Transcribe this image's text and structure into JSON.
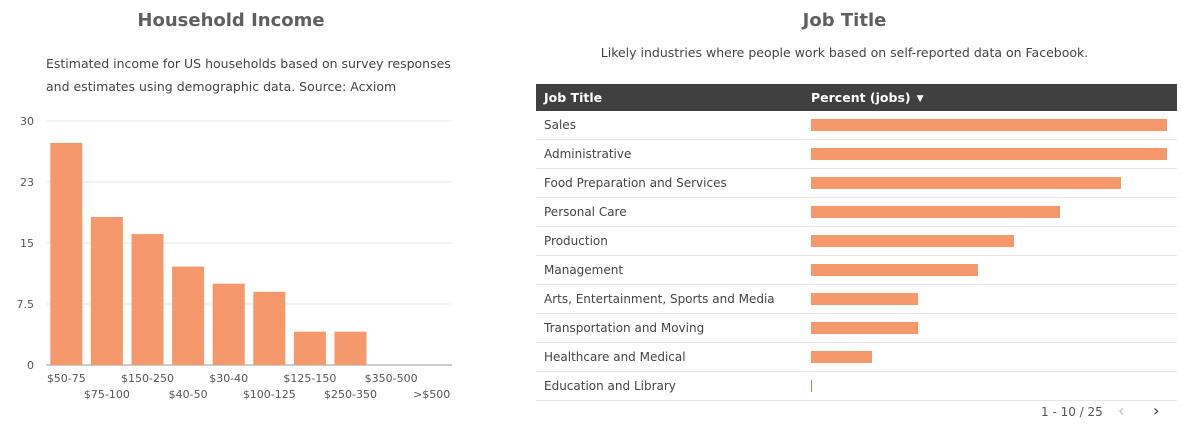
{
  "household_income": {
    "title": "Household Income",
    "description": "Estimated income for US households based on survey responses and estimates using demographic data. Source: Acxiom"
  },
  "job_title": {
    "title": "Job Title",
    "description": "Likely industries where people work based on self-reported data on Facebook.",
    "table": {
      "headers": {
        "job_title": "Job Title",
        "percent": "Percent (jobs)"
      },
      "sort_icon": "sort-descending-icon",
      "rows": [
        {
          "label": "Sales",
          "percent_share": 1.0
        },
        {
          "label": "Administrative",
          "percent_share": 1.0
        },
        {
          "label": "Food Preparation and Services",
          "percent_share": 0.87
        },
        {
          "label": "Personal Care",
          "percent_share": 0.7
        },
        {
          "label": "Production",
          "percent_share": 0.57
        },
        {
          "label": "Management",
          "percent_share": 0.47
        },
        {
          "label": "Arts, Entertainment, Sports and Media",
          "percent_share": 0.3
        },
        {
          "label": "Transportation and Moving",
          "percent_share": 0.3
        },
        {
          "label": "Healthcare and Medical",
          "percent_share": 0.17
        },
        {
          "label": "Education and Library",
          "percent_share": 0.0
        }
      ],
      "pagination": "1 - 10 / 25",
      "prev_icon": "chevron-left-icon",
      "next_icon": "chevron-right-icon"
    }
  },
  "colors": {
    "bar": "#f5986b",
    "header_bg": "#404040",
    "tiny_bar": "#6aa84f"
  },
  "chart_data": {
    "type": "bar",
    "title": "Household Income",
    "categories": [
      "$50-75",
      "$75-100",
      "$150-250",
      "$40-50",
      "$30-40",
      "$100-125",
      "$125-150",
      "$250-350",
      "$350-500",
      ">$500"
    ],
    "values": [
      27.3,
      18.2,
      16.1,
      12.1,
      10.0,
      9.0,
      4.1,
      4.1,
      0,
      0
    ],
    "ylim": [
      0,
      30
    ],
    "yticks": [
      "30",
      "23",
      "15",
      "7.5",
      "0"
    ],
    "ytick_values": [
      30,
      22.5,
      15,
      7.5,
      0
    ],
    "grid": true
  }
}
